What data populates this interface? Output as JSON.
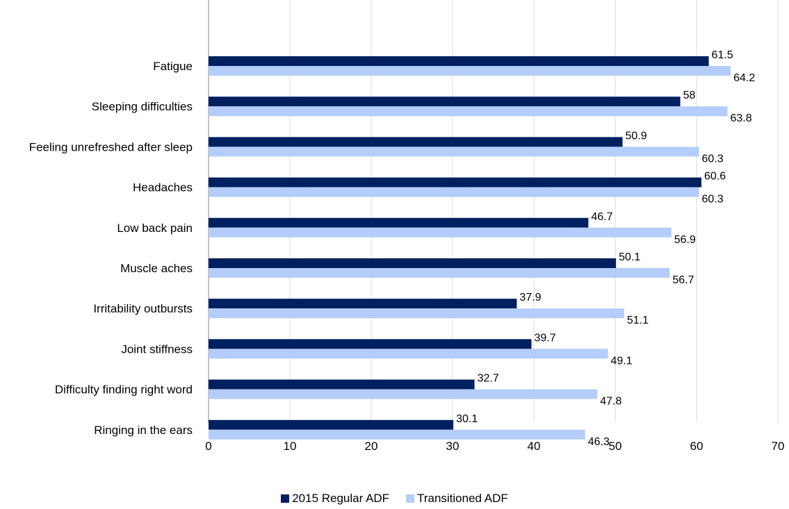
{
  "chart_data": {
    "type": "bar",
    "orientation": "horizontal",
    "categories": [
      "Fatigue",
      "Sleeping difficulties",
      "Feeling unrefreshed after sleep",
      "Headaches",
      "Low back pain",
      "Muscle aches",
      "Irritability outbursts",
      "Joint stiffness",
      "Difficulty finding right word",
      "Ringing in the ears"
    ],
    "series": [
      {
        "name": "2015 Regular ADF",
        "color": "#002060",
        "values": [
          61.5,
          58,
          50.9,
          60.6,
          46.7,
          50.1,
          37.9,
          39.7,
          32.7,
          30.1
        ]
      },
      {
        "name": "Transitioned ADF",
        "color": "#B4CDFA",
        "values": [
          64.2,
          63.8,
          60.3,
          60.3,
          56.9,
          56.7,
          51.1,
          49.1,
          47.8,
          46.3
        ]
      }
    ],
    "xlim": [
      0,
      70
    ],
    "xticks": [
      0,
      10,
      20,
      30,
      40,
      50,
      60,
      70
    ],
    "grid": true,
    "legend_position": "bottom",
    "title": "",
    "xlabel": "",
    "ylabel": ""
  }
}
